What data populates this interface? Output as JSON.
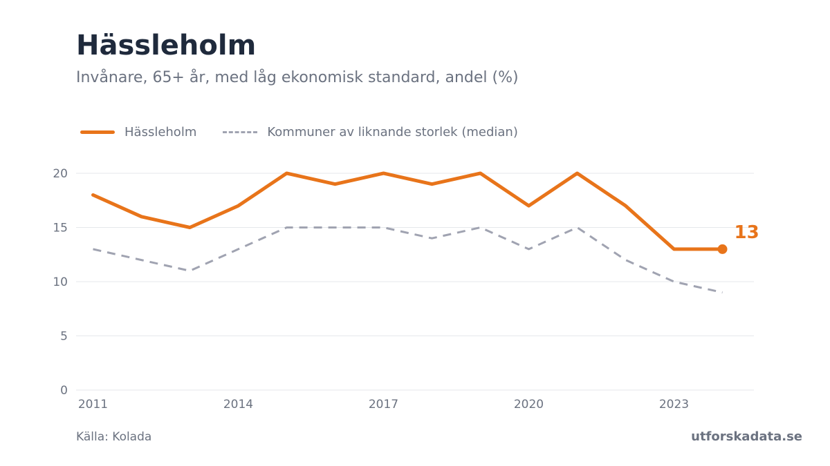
{
  "header": {
    "title": "Hässleholm",
    "subtitle": "Invånare, 65+ år, med låg ekonomisk standard, andel (%)"
  },
  "footer": {
    "source": "Källa: Kolada",
    "brand": "utforskadata.se"
  },
  "colors": {
    "primary": "#e8741a",
    "comparison": "#a0a3b1",
    "grid": "#e5e7eb",
    "axis_text": "#6b7280"
  },
  "chart_data": {
    "type": "line",
    "x": [
      2011,
      2012,
      2013,
      2014,
      2015,
      2016,
      2017,
      2018,
      2019,
      2020,
      2021,
      2022,
      2023,
      2024
    ],
    "x_ticks": [
      2011,
      2014,
      2017,
      2020,
      2023
    ],
    "y_ticks": [
      0,
      5,
      10,
      15,
      20
    ],
    "xlim": [
      2010.65,
      2024.65
    ],
    "ylim": [
      0,
      20
    ],
    "grid": true,
    "legend_position": "top-left",
    "series": [
      {
        "name": "Hässleholm",
        "style": "solid",
        "color": "#e8741a",
        "values": [
          18,
          16,
          15,
          17,
          20,
          19,
          20,
          19,
          20,
          17,
          20,
          17,
          13,
          13
        ]
      },
      {
        "name": "Kommuner av liknande storlek (median)",
        "style": "dashed",
        "color": "#a0a3b1",
        "values": [
          13,
          12,
          11,
          13,
          15,
          15,
          15,
          14,
          15,
          13,
          15,
          12,
          10,
          9
        ]
      }
    ],
    "end_label": "13"
  }
}
